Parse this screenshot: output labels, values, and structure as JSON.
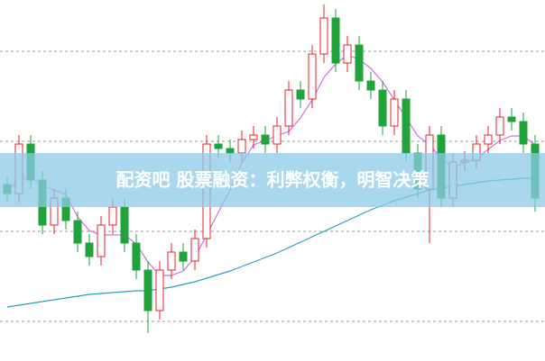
{
  "chart_data": {
    "type": "candlestick",
    "title": "配资吧 股票融资：利弊权衡，明智决策",
    "ylim": [
      0,
      401
    ],
    "grid_levels": [
      344,
      244,
      144,
      44
    ],
    "up_color": "#e8202a",
    "down_color": "#1fa33a",
    "open": [
      196,
      186,
      241,
      201,
      151,
      181,
      156,
      131,
      116,
      151,
      171,
      131,
      101,
      56,
      101,
      121,
      111,
      136,
      241,
      236,
      231,
      246,
      251,
      241,
      261,
      301,
      291,
      341,
      381,
      331,
      351,
      311,
      301,
      261,
      291,
      231,
      191,
      251,
      181,
      221,
      223,
      241,
      251,
      271,
      266,
      241
    ],
    "close": [
      186,
      241,
      201,
      151,
      181,
      156,
      131,
      116,
      151,
      171,
      131,
      101,
      56,
      101,
      121,
      111,
      136,
      241,
      236,
      231,
      246,
      251,
      241,
      261,
      301,
      291,
      341,
      381,
      331,
      351,
      311,
      301,
      261,
      291,
      231,
      191,
      251,
      181,
      221,
      223,
      241,
      251,
      271,
      266,
      241,
      181
    ],
    "high": [
      206,
      251,
      251,
      211,
      191,
      191,
      166,
      141,
      161,
      181,
      181,
      141,
      111,
      111,
      131,
      131,
      146,
      251,
      251,
      246,
      256,
      261,
      261,
      271,
      311,
      311,
      351,
      396,
      391,
      361,
      361,
      321,
      311,
      301,
      301,
      241,
      261,
      261,
      231,
      233,
      251,
      261,
      281,
      281,
      276,
      251
    ],
    "low": [
      176,
      176,
      191,
      141,
      141,
      146,
      121,
      106,
      106,
      141,
      121,
      91,
      31,
      46,
      91,
      101,
      101,
      126,
      226,
      221,
      221,
      236,
      231,
      231,
      251,
      281,
      281,
      331,
      321,
      321,
      301,
      291,
      251,
      251,
      221,
      181,
      131,
      171,
      171,
      211,
      213,
      231,
      241,
      256,
      231,
      166
    ],
    "series": [
      {
        "color": "#d070e0",
        "values": [
          190,
          200,
          205,
          195,
          190,
          185,
          160,
          145,
          140,
          140,
          140,
          130,
          110,
          95,
          95,
          100,
          115,
          140,
          165,
          190,
          220,
          240,
          245,
          250,
          255,
          270,
          290,
          315,
          330,
          340,
          335,
          325,
          310,
          290,
          270,
          250,
          240,
          225,
          215,
          220,
          225,
          235,
          245,
          250,
          250,
          240
        ]
      },
      {
        "color": "#2aa0c0",
        "values": [
          60,
          62,
          64,
          66,
          68,
          70,
          72,
          74,
          75,
          76,
          77,
          78,
          78,
          80,
          82,
          85,
          88,
          92,
          96,
          100,
          105,
          110,
          115,
          120,
          126,
          132,
          138,
          144,
          150,
          156,
          162,
          168,
          173,
          178,
          182,
          186,
          190,
          192,
          194,
          196,
          198,
          200,
          201,
          202,
          203,
          203
        ]
      }
    ]
  }
}
